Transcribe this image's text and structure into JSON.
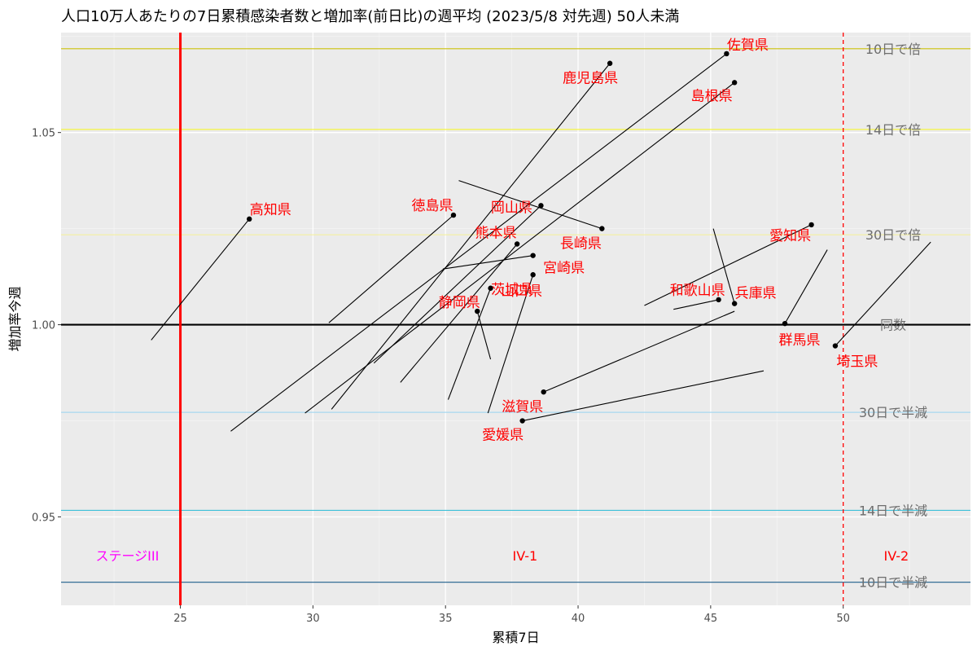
{
  "chart_data": {
    "type": "scatter",
    "title": "人口10万人あたりの7日累積感染者数と増加率(前日比)の週平均 (2023/5/8 対先週) 50人未満",
    "xlabel": "累積7日",
    "ylabel": "増加率今週",
    "xlim": [
      20.5,
      54.8
    ],
    "ylim": [
      0.927,
      1.076
    ],
    "xticks": [
      25,
      30,
      35,
      40,
      45,
      50
    ],
    "xtick_labels": [
      "25",
      "30",
      "35",
      "40",
      "45",
      "50"
    ],
    "yticks": [
      0.95,
      1.0,
      1.05
    ],
    "ytick_labels": [
      "0.95",
      "1.00",
      "1.05"
    ],
    "grid": true,
    "background": "#ebebeb",
    "point_color": "#000000",
    "label_color": "#ff0000",
    "reference_lines": [
      {
        "y": 1.0718,
        "label": "10日で倍",
        "color": "#cdc20a",
        "width": 1.2
      },
      {
        "y": 1.0508,
        "label": "14日で倍",
        "color": "#f5f542",
        "width": 1.2
      },
      {
        "y": 1.0234,
        "label": "30日で倍",
        "color": "#f5f0a0",
        "width": 1.2
      },
      {
        "y": 1.0,
        "label": "同数",
        "color": "#000000",
        "width": 2.2
      },
      {
        "y": 0.9772,
        "label": "30日で半減",
        "color": "#a8d8f0",
        "width": 1.2
      },
      {
        "y": 0.9517,
        "label": "14日で半減",
        "color": "#3cc0d8",
        "width": 1.2
      },
      {
        "y": 0.933,
        "label": "10日で半減",
        "color": "#1f5f8b",
        "width": 1.2
      }
    ],
    "vertical_lines": [
      {
        "x": 25,
        "color": "#ff0000",
        "style": "solid"
      },
      {
        "x": 50,
        "color": "#ff0000",
        "style": "dashed"
      }
    ],
    "zones": [
      {
        "label": "ステージIII",
        "x": 23.0,
        "color": "#ff00ff"
      },
      {
        "label": "IV-1",
        "x": 38.0,
        "color": "#ff0000"
      },
      {
        "label": "IV-2",
        "x": 52.0,
        "color": "#ff0000"
      }
    ],
    "points": [
      {
        "name": "佐賀県",
        "x": 45.6,
        "y": 1.0705,
        "prev_x": 26.9,
        "prev_y": 0.9723
      },
      {
        "name": "鹿児島県",
        "x": 41.2,
        "y": 1.068,
        "prev_x": 30.7,
        "prev_y": 0.978
      },
      {
        "name": "島根県",
        "x": 45.9,
        "y": 1.063,
        "prev_x": 29.7,
        "prev_y": 0.977
      },
      {
        "name": "高知県",
        "x": 27.6,
        "y": 1.0275,
        "prev_x": 23.9,
        "prev_y": 0.996
      },
      {
        "name": "徳島県",
        "x": 35.3,
        "y": 1.0285,
        "prev_x": 30.6,
        "prev_y": 1.0005
      },
      {
        "name": "岡山県",
        "x": 38.6,
        "y": 1.031,
        "prev_x": 32.3,
        "prev_y": 0.99
      },
      {
        "name": "長崎県",
        "x": 40.9,
        "y": 1.025,
        "prev_x": 35.5,
        "prev_y": 1.0375
      },
      {
        "name": "熊本県",
        "x": 37.7,
        "y": 1.021,
        "prev_x": 33.3,
        "prev_y": 0.985
      },
      {
        "name": "宮崎県",
        "x": 38.3,
        "y": 1.018,
        "prev_x": 34.9,
        "prev_y": 1.0145
      },
      {
        "name": "愛知県",
        "x": 48.8,
        "y": 1.026,
        "prev_x": 42.5,
        "prev_y": 1.005
      },
      {
        "name": "山口県",
        "x": 36.7,
        "y": 1.0095,
        "prev_x": 35.1,
        "prev_y": 0.9805
      },
      {
        "name": "静岡県",
        "x": 36.2,
        "y": 1.0035,
        "prev_x": 36.7,
        "prev_y": 0.991
      },
      {
        "name": "茨城県",
        "x": 38.3,
        "y": 1.013,
        "prev_x": 36.6,
        "prev_y": 0.977
      },
      {
        "name": "和歌山県",
        "x": 45.3,
        "y": 1.0065,
        "prev_x": 43.6,
        "prev_y": 1.004
      },
      {
        "name": "兵庫県",
        "x": 45.9,
        "y": 1.0055,
        "prev_x": 45.1,
        "prev_y": 1.025
      },
      {
        "name": "群馬県",
        "x": 47.8,
        "y": 1.0003,
        "prev_x": 49.4,
        "prev_y": 1.0195
      },
      {
        "name": "埼玉県",
        "x": 49.7,
        "y": 0.9945,
        "prev_x": 53.3,
        "prev_y": 1.0215
      },
      {
        "name": "滋賀県",
        "x": 38.7,
        "y": 0.9825,
        "prev_x": 45.9,
        "prev_y": 1.0035
      },
      {
        "name": "愛媛県",
        "x": 37.9,
        "y": 0.975,
        "prev_x": 47.0,
        "prev_y": 0.988
      }
    ]
  }
}
